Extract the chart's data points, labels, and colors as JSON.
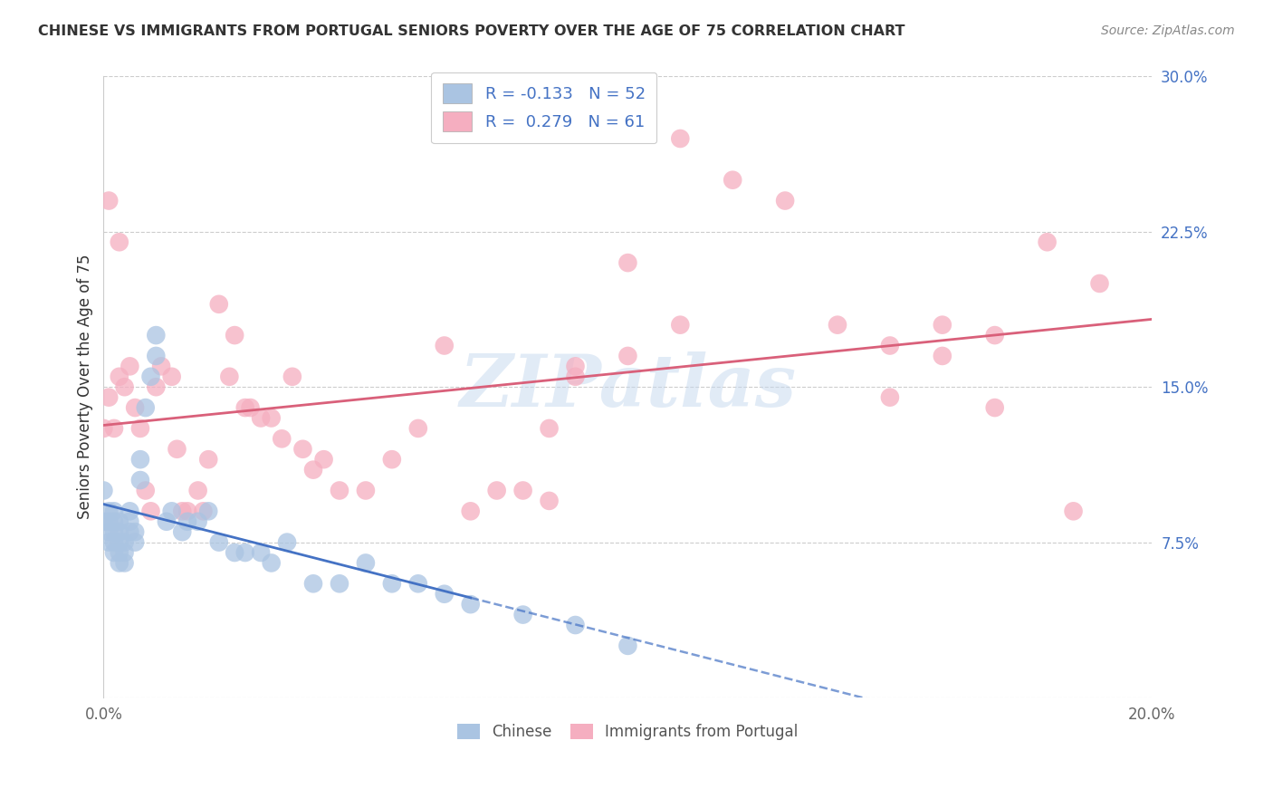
{
  "title": "CHINESE VS IMMIGRANTS FROM PORTUGAL SENIORS POVERTY OVER THE AGE OF 75 CORRELATION CHART",
  "source": "Source: ZipAtlas.com",
  "ylabel": "Seniors Poverty Over the Age of 75",
  "xlim": [
    0.0,
    0.2
  ],
  "ylim": [
    0.0,
    0.3
  ],
  "xticks": [
    0.0,
    0.05,
    0.1,
    0.15,
    0.2
  ],
  "xtick_labels": [
    "0.0%",
    "",
    "",
    "",
    "20.0%"
  ],
  "ytick_labels": [
    "",
    "7.5%",
    "15.0%",
    "22.5%",
    "30.0%"
  ],
  "yticks": [
    0.0,
    0.075,
    0.15,
    0.225,
    0.3
  ],
  "r_chinese": -0.133,
  "n_chinese": 52,
  "r_portugal": 0.279,
  "n_portugal": 61,
  "color_chinese": "#aac4e2",
  "color_portugal": "#f5aec0",
  "line_color_chinese": "#4472c4",
  "line_color_portugal": "#d9607a",
  "watermark": "ZIPatlas",
  "chinese_x": [
    0.0,
    0.0,
    0.001,
    0.001,
    0.001,
    0.001,
    0.002,
    0.002,
    0.002,
    0.002,
    0.002,
    0.003,
    0.003,
    0.003,
    0.003,
    0.003,
    0.004,
    0.004,
    0.004,
    0.005,
    0.005,
    0.005,
    0.006,
    0.006,
    0.007,
    0.007,
    0.008,
    0.009,
    0.01,
    0.01,
    0.012,
    0.013,
    0.015,
    0.016,
    0.018,
    0.02,
    0.022,
    0.025,
    0.027,
    0.03,
    0.032,
    0.035,
    0.04,
    0.045,
    0.05,
    0.055,
    0.06,
    0.065,
    0.07,
    0.08,
    0.09,
    0.1
  ],
  "chinese_y": [
    0.1,
    0.085,
    0.09,
    0.08,
    0.085,
    0.075,
    0.09,
    0.085,
    0.08,
    0.075,
    0.07,
    0.085,
    0.08,
    0.075,
    0.07,
    0.065,
    0.075,
    0.07,
    0.065,
    0.09,
    0.085,
    0.08,
    0.08,
    0.075,
    0.115,
    0.105,
    0.14,
    0.155,
    0.165,
    0.175,
    0.085,
    0.09,
    0.08,
    0.085,
    0.085,
    0.09,
    0.075,
    0.07,
    0.07,
    0.07,
    0.065,
    0.075,
    0.055,
    0.055,
    0.065,
    0.055,
    0.055,
    0.05,
    0.045,
    0.04,
    0.035,
    0.025
  ],
  "portugal_x": [
    0.0,
    0.001,
    0.001,
    0.002,
    0.003,
    0.003,
    0.004,
    0.005,
    0.006,
    0.007,
    0.008,
    0.009,
    0.01,
    0.011,
    0.013,
    0.014,
    0.015,
    0.016,
    0.018,
    0.019,
    0.02,
    0.022,
    0.024,
    0.025,
    0.027,
    0.028,
    0.03,
    0.032,
    0.034,
    0.036,
    0.038,
    0.04,
    0.042,
    0.045,
    0.05,
    0.055,
    0.06,
    0.065,
    0.07,
    0.075,
    0.08,
    0.085,
    0.09,
    0.1,
    0.11,
    0.12,
    0.13,
    0.14,
    0.15,
    0.16,
    0.17,
    0.18,
    0.185,
    0.19,
    0.085,
    0.09,
    0.1,
    0.11,
    0.15,
    0.16,
    0.17
  ],
  "portugal_y": [
    0.13,
    0.24,
    0.145,
    0.13,
    0.22,
    0.155,
    0.15,
    0.16,
    0.14,
    0.13,
    0.1,
    0.09,
    0.15,
    0.16,
    0.155,
    0.12,
    0.09,
    0.09,
    0.1,
    0.09,
    0.115,
    0.19,
    0.155,
    0.175,
    0.14,
    0.14,
    0.135,
    0.135,
    0.125,
    0.155,
    0.12,
    0.11,
    0.115,
    0.1,
    0.1,
    0.115,
    0.13,
    0.17,
    0.09,
    0.1,
    0.1,
    0.13,
    0.155,
    0.21,
    0.27,
    0.25,
    0.24,
    0.18,
    0.145,
    0.165,
    0.14,
    0.22,
    0.09,
    0.2,
    0.095,
    0.16,
    0.165,
    0.18,
    0.17,
    0.18,
    0.175
  ]
}
